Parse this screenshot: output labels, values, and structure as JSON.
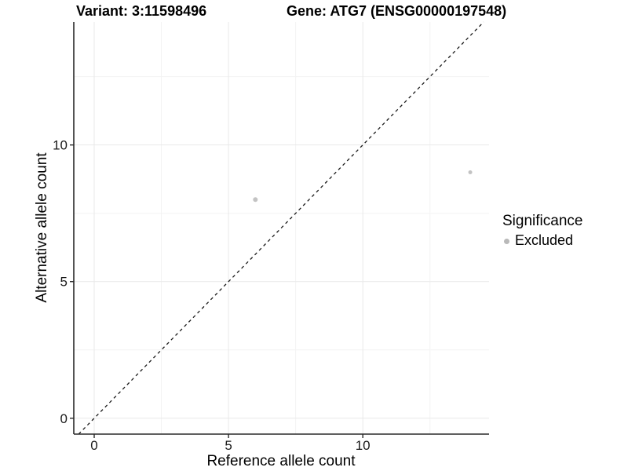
{
  "titles": {
    "variant": "Variant: 3:11598496",
    "gene": "Gene: ATG7 (ENSG00000197548)"
  },
  "axes": {
    "x": {
      "label": "Reference allele count"
    },
    "y": {
      "label": "Alternative allele count"
    }
  },
  "legend": {
    "title": "Significance",
    "items": [
      {
        "label": "Excluded",
        "color": "#b9b9b9"
      }
    ]
  },
  "chart_data": {
    "type": "scatter",
    "title": "Variant: 3:11598496   |   Gene: ATG7 (ENSG00000197548)",
    "xlabel": "Reference allele count",
    "ylabel": "Alternative allele count",
    "xlim": [
      -0.76,
      14.7
    ],
    "ylim": [
      -0.58,
      14.5
    ],
    "x_ticks": [
      0,
      5,
      10
    ],
    "y_ticks": [
      0,
      5,
      10
    ],
    "x_minor_ticks": [
      2.5,
      7.5,
      12.5
    ],
    "y_minor_ticks": [
      2.5,
      7.5,
      12.5
    ],
    "grid": "major and minor gridlines, very light gray, on white panel",
    "legend_position": "right-middle",
    "series": [
      {
        "name": "Excluded",
        "color": "#c3c3c3",
        "points": [
          {
            "x": 6,
            "y": 8,
            "r": 3.0
          },
          {
            "x": 14,
            "y": 9,
            "r": 2.5
          }
        ]
      }
    ],
    "reference_line": {
      "kind": "identity y=x",
      "style": "dashed",
      "color": "#1a1a1a"
    },
    "colors": {
      "grid_major": "#e9e9e9",
      "grid_minor": "#f3f3f3",
      "axis_line": "#2a2a2a",
      "tick_label": "#1a1a1a",
      "point": "#c3c3c3"
    }
  }
}
